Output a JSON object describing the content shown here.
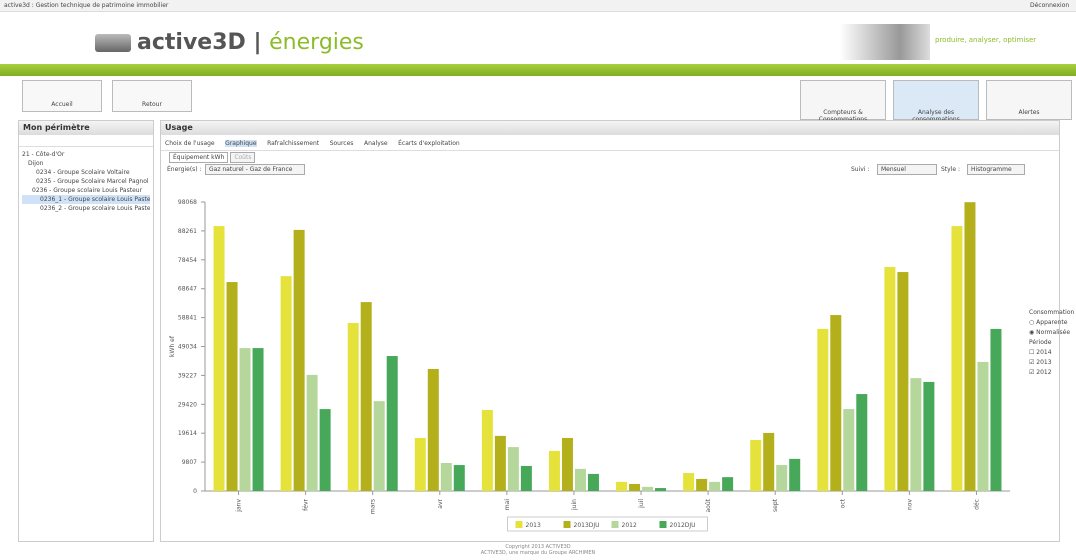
{
  "header": {
    "app_title": "active3d : Gestion technique de patrimoine immobilier",
    "logout": "Déconnexion",
    "logo": "active3D",
    "logo_suffix": "énergies",
    "tagline": "produire, analyser, optimiser"
  },
  "nav": {
    "left": [
      "Accueil",
      "Retour"
    ],
    "right": [
      "Compteurs & Consommations",
      "Analyse des consommations",
      "Alertes"
    ]
  },
  "sidebar": {
    "title": "Mon périmètre",
    "tree": [
      "21 - Côte-d'Or",
      "Dijon",
      "0234 - Groupe Scolaire Voltaire",
      "0235 - Groupe Scolaire Marcel Pagnol",
      "0236 - Groupe scolaire Louis Pasteur",
      "0236_1 - Groupe scolaire Louis Pasteur",
      "0236_2 - Groupe scolaire Louis Pasteur"
    ]
  },
  "main": {
    "title": "Usage",
    "toolbar": [
      "Choix de l'usage",
      "Graphique",
      "Rafraîchissement",
      "Sources",
      "Analyse",
      "Écarts d'exploitation"
    ],
    "tabs": [
      "Équipement kWh",
      "Coûts"
    ],
    "filters": {
      "energy_label": "Énergie(s) :",
      "energy": "Gaz naturel - Gaz de France",
      "period_label": "Suivi :",
      "period": "Mensuel",
      "style_label": "Style :",
      "style": "Histogramme"
    },
    "options": {
      "consumption_title": "Consommation",
      "consumption": [
        "Apparente",
        "Normalisée"
      ],
      "period_title": "Période",
      "periods": [
        "2014",
        "2013",
        "2012"
      ]
    }
  },
  "chart_data": {
    "type": "bar",
    "ylabel": "kWh ef",
    "categories": [
      "janv",
      "févr",
      "mars",
      "avr",
      "mai",
      "juin",
      "juil",
      "août",
      "sept",
      "oct",
      "nov",
      "déc"
    ],
    "series": [
      {
        "name": "2013",
        "color": "#e6e23c",
        "values": [
          89900,
          72900,
          57000,
          18000,
          27500,
          13600,
          3100,
          6100,
          17300,
          55000,
          76000,
          89900
        ]
      },
      {
        "name": "2013DJU",
        "color": "#b3b01c",
        "values": [
          70900,
          88600,
          64100,
          41400,
          18700,
          18000,
          2400,
          4100,
          19700,
          59700,
          74300,
          98000
        ]
      },
      {
        "name": "2012",
        "color": "#b6d79c",
        "values": [
          48500,
          39400,
          30500,
          9500,
          14900,
          7500,
          1400,
          3100,
          8800,
          27800,
          38300,
          43800
        ]
      },
      {
        "name": "2012DJU",
        "color": "#47a85a",
        "values": [
          48500,
          27800,
          45800,
          8800,
          8500,
          5800,
          1000,
          4700,
          10900,
          32900,
          37000,
          55000
        ]
      }
    ],
    "ylim": [
      0,
      98068
    ],
    "yticks": [
      0,
      9807,
      19614,
      29420,
      39227,
      49034,
      58841,
      68647,
      78454,
      88261,
      98068
    ]
  },
  "footer": [
    "Copyright 2013 ACTIVE3D",
    "ACTIVE3D, une marque du Groupe ARCHIMEN"
  ]
}
